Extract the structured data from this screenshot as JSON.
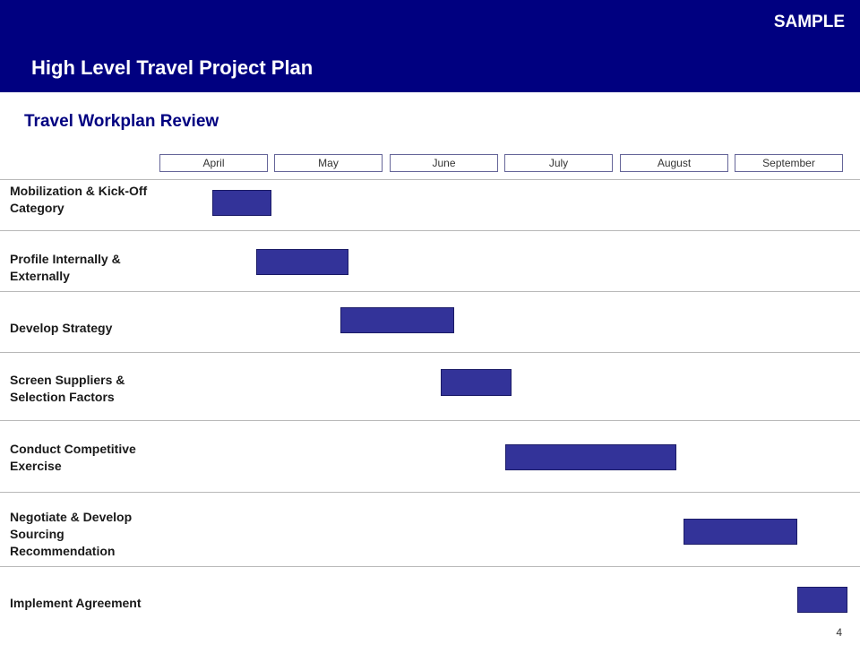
{
  "header": {
    "sample_label": "SAMPLE",
    "title": "High Level Travel Project Plan"
  },
  "subtitle": "Travel Workplan Review",
  "months": [
    "April",
    "May",
    "June",
    "July",
    "August",
    "September"
  ],
  "tasks": [
    {
      "label": "Mobilization & Kick-Off Category",
      "start_month": 0.46,
      "end_month": 0.97
    },
    {
      "label": "Profile Internally & Externally",
      "start_month": 0.84,
      "end_month": 1.64
    },
    {
      "label": "Develop Strategy",
      "start_month": 1.57,
      "end_month": 2.56
    },
    {
      "label": "Screen Suppliers & Selection Factors",
      "start_month": 2.44,
      "end_month": 3.06
    },
    {
      "label": "Conduct Competitive Exercise",
      "start_month": 3.0,
      "end_month": 4.49
    },
    {
      "label": "Negotiate & Develop Sourcing Recommendation",
      "start_month": 4.55,
      "end_month": 5.54
    },
    {
      "label": "Implement Agreement",
      "start_month": 5.54,
      "end_month": 5.98
    }
  ],
  "colors": {
    "header_bg": "#000080",
    "bar_fill": "#333399",
    "subtitle": "#000080"
  },
  "page_number": "4"
}
